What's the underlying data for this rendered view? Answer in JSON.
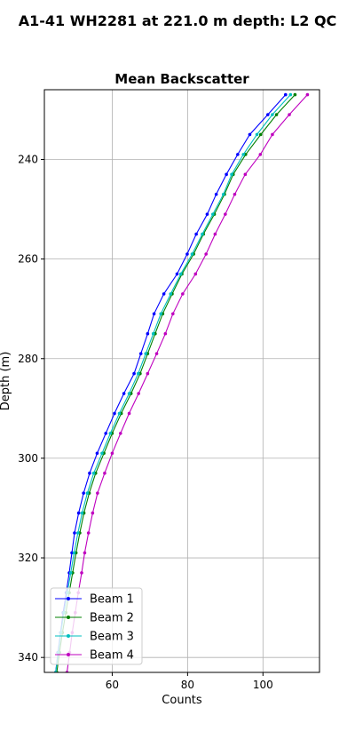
{
  "figure": {
    "suptitle": "A1-41 WH2281 at 221.0 m depth: L2 QC"
  },
  "chart_data": {
    "type": "line",
    "title": "Mean Backscatter",
    "xlabel": "Counts",
    "ylabel": "Depth (m)",
    "xlim": [
      42,
      115
    ],
    "ylim": [
      343,
      226
    ],
    "y_inverted": true,
    "xticks": [
      60,
      80,
      100
    ],
    "yticks": [
      240,
      260,
      280,
      300,
      320,
      340
    ],
    "grid": true,
    "legend_position": "lower-left",
    "series": [
      {
        "name": "Beam 1",
        "color": "#0000ff",
        "depth": [
          227,
          231,
          235,
          239,
          243,
          247,
          251,
          255,
          259,
          263,
          267,
          271,
          275,
          279,
          283,
          287,
          291,
          295,
          299,
          303,
          307,
          311,
          315,
          319,
          323,
          327,
          331,
          335,
          339,
          343
        ],
        "counts": [
          106.0,
          101.3,
          96.5,
          93.3,
          90.3,
          87.6,
          85.2,
          82.3,
          79.9,
          77.2,
          73.7,
          71.1,
          69.4,
          67.6,
          65.8,
          63.1,
          60.6,
          58.3,
          56.0,
          54.0,
          52.4,
          51.1,
          50.0,
          49.3,
          48.6,
          47.8,
          47.0,
          46.3,
          45.6,
          45.0
        ]
      },
      {
        "name": "Beam 2",
        "color": "#008000",
        "depth": [
          227,
          231,
          235,
          239,
          243,
          247,
          251,
          255,
          259,
          263,
          267,
          271,
          275,
          279,
          283,
          287,
          291,
          295,
          299,
          303,
          307,
          311,
          315,
          319,
          323,
          327,
          331,
          335,
          339,
          343
        ],
        "counts": [
          108.5,
          103.6,
          99.4,
          95.4,
          92.1,
          89.8,
          87.1,
          84.2,
          81.6,
          78.5,
          75.9,
          73.4,
          71.4,
          69.4,
          67.4,
          65.0,
          62.4,
          60.0,
          57.8,
          55.6,
          53.9,
          52.5,
          51.4,
          50.4,
          49.5,
          48.6,
          47.7,
          46.8,
          46.0,
          45.3
        ]
      },
      {
        "name": "Beam 3",
        "color": "#00bfbf",
        "depth": [
          227,
          231,
          235,
          239,
          243,
          247,
          251,
          255,
          259,
          263,
          267,
          271,
          275,
          279,
          283,
          287,
          291,
          295,
          299,
          303,
          307,
          311,
          315,
          319,
          323,
          327,
          331,
          335,
          339,
          343
        ],
        "counts": [
          107.3,
          102.5,
          98.4,
          94.8,
          91.7,
          89.5,
          86.7,
          83.9,
          81.2,
          78.2,
          75.5,
          72.9,
          70.9,
          68.9,
          66.9,
          64.5,
          61.9,
          59.5,
          57.3,
          55.1,
          53.4,
          52.0,
          50.9,
          49.9,
          49.0,
          48.1,
          47.2,
          46.4,
          45.7,
          45.0
        ]
      },
      {
        "name": "Beam 4",
        "color": "#bf00bf",
        "depth": [
          227,
          231,
          235,
          239,
          243,
          247,
          251,
          255,
          259,
          263,
          267,
          271,
          275,
          279,
          283,
          287,
          291,
          295,
          299,
          303,
          307,
          311,
          315,
          319,
          323,
          327,
          331,
          335,
          339,
          343
        ],
        "counts": [
          111.8,
          107.0,
          102.5,
          99.3,
          95.3,
          92.5,
          90.0,
          87.3,
          84.9,
          82.1,
          78.7,
          76.1,
          74.1,
          71.8,
          69.4,
          67.0,
          64.5,
          62.2,
          60.0,
          58.0,
          56.1,
          54.8,
          53.7,
          52.7,
          51.9,
          51.0,
          50.2,
          49.4,
          48.7,
          48.0
        ]
      }
    ]
  }
}
